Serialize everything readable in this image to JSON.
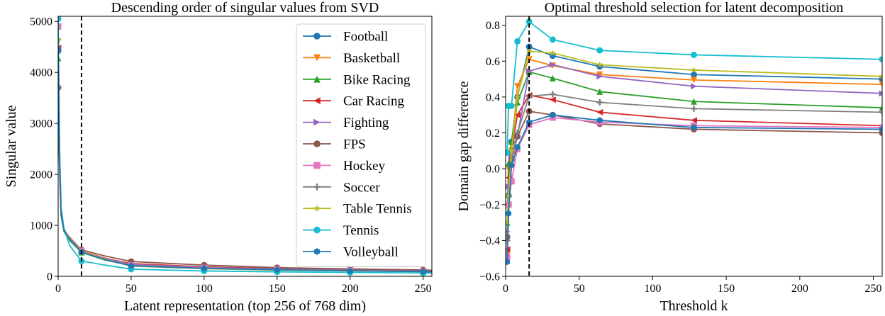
{
  "chart_data": [
    {
      "type": "line",
      "title": "Descending order of singular values from SVD",
      "xlabel": "Latent representation (top 256 of 768 dim)",
      "ylabel": "Singular value",
      "xlim": [
        0,
        256
      ],
      "ylim": [
        0,
        5100
      ],
      "xticks": [
        "0",
        "50",
        "100",
        "150",
        "200",
        "250"
      ],
      "yticks": [
        "0",
        "1000",
        "2000",
        "3000",
        "4000",
        "5000"
      ],
      "xtick_values": [
        0,
        50,
        100,
        150,
        200,
        250
      ],
      "ytick_values": [
        0,
        1000,
        2000,
        3000,
        4000,
        5000
      ],
      "vline_x": 16,
      "legend_position": "upper-right",
      "x": [
        0,
        1,
        2,
        4,
        8,
        16,
        32,
        50,
        100,
        150,
        200,
        250,
        256
      ],
      "series": [
        {
          "name": "Football",
          "color": "#1f77b4",
          "marker": "circle",
          "values": [
            4420,
            2200,
            1250,
            900,
            720,
            480,
            340,
            230,
            170,
            140,
            120,
            100,
            95
          ]
        },
        {
          "name": "Basketball",
          "color": "#ff7f0e",
          "marker": "triangle-down",
          "values": [
            4600,
            2300,
            1300,
            920,
            740,
            500,
            360,
            240,
            180,
            145,
            125,
            105,
            100
          ]
        },
        {
          "name": "Bike Racing",
          "color": "#2ca02c",
          "marker": "triangle-up",
          "values": [
            4280,
            2100,
            1200,
            880,
            700,
            470,
            320,
            210,
            160,
            130,
            110,
            95,
            90
          ]
        },
        {
          "name": "Car Racing",
          "color": "#d62728",
          "marker": "triangle-left",
          "values": [
            4480,
            2250,
            1280,
            910,
            730,
            490,
            350,
            250,
            185,
            150,
            128,
            108,
            102
          ]
        },
        {
          "name": "Fighting",
          "color": "#9467bd",
          "marker": "triangle-right",
          "values": [
            4480,
            2250,
            1280,
            910,
            730,
            490,
            350,
            235,
            175,
            142,
            122,
            103,
            98
          ]
        },
        {
          "name": "FPS",
          "color": "#8c564b",
          "marker": "circle",
          "values": [
            3700,
            2000,
            1200,
            900,
            760,
            520,
            400,
            290,
            220,
            170,
            145,
            125,
            120
          ]
        },
        {
          "name": "Hockey",
          "color": "#e377c2",
          "marker": "square",
          "values": [
            4900,
            2400,
            1320,
            930,
            740,
            500,
            340,
            220,
            165,
            135,
            115,
            98,
            93
          ]
        },
        {
          "name": "Soccer",
          "color": "#7f7f7f",
          "marker": "plus",
          "values": [
            4480,
            2200,
            1260,
            900,
            720,
            480,
            330,
            215,
            160,
            132,
            112,
            96,
            91
          ]
        },
        {
          "name": "Table Tennis",
          "color": "#bcbd22",
          "marker": "star",
          "values": [
            4650,
            2300,
            1300,
            920,
            730,
            485,
            335,
            200,
            150,
            122,
            104,
            90,
            86
          ]
        },
        {
          "name": "Tennis",
          "color": "#17becf",
          "marker": "circle",
          "values": [
            5050,
            2500,
            1350,
            940,
            600,
            300,
            220,
            140,
            105,
            88,
            76,
            66,
            63
          ]
        },
        {
          "name": "Volleyball",
          "color": "#1f77b4",
          "marker": "hexagon",
          "values": [
            4450,
            2200,
            1250,
            900,
            720,
            475,
            330,
            205,
            155,
            128,
            108,
            93,
            88
          ]
        }
      ]
    },
    {
      "type": "line",
      "title": "Optimal threshold selection for latent decomposition",
      "xlabel": "Threshold k",
      "ylabel": "Domain gap difference",
      "xlim": [
        0,
        256
      ],
      "ylim": [
        -0.6,
        0.85
      ],
      "xticks": [
        "0",
        "50",
        "100",
        "150",
        "200",
        "250"
      ],
      "yticks": [
        "−0.6",
        "−0.4",
        "−0.2",
        "0.0",
        "0.2",
        "0.4",
        "0.6",
        "0.8"
      ],
      "xtick_values": [
        0,
        50,
        100,
        150,
        200,
        250
      ],
      "ytick_values": [
        -0.6,
        -0.4,
        -0.2,
        0.0,
        0.2,
        0.4,
        0.6,
        0.8
      ],
      "vline_x": 16,
      "x": [
        1,
        2,
        4,
        8,
        16,
        32,
        64,
        128,
        256
      ],
      "series": [
        {
          "name": "Football",
          "color": "#1f77b4",
          "marker": "circle",
          "values": [
            -0.5,
            -0.15,
            0.15,
            0.4,
            0.68,
            0.63,
            0.57,
            0.525,
            0.5
          ]
        },
        {
          "name": "Basketball",
          "color": "#ff7f0e",
          "marker": "triangle-down",
          "values": [
            -0.48,
            0.0,
            0.1,
            0.46,
            0.61,
            0.575,
            0.525,
            0.495,
            0.47
          ]
        },
        {
          "name": "Bike Racing",
          "color": "#2ca02c",
          "marker": "triangle-up",
          "values": [
            -0.3,
            0.03,
            0.15,
            0.37,
            0.54,
            0.505,
            0.43,
            0.375,
            0.34
          ]
        },
        {
          "name": "Car Racing",
          "color": "#d62728",
          "marker": "triangle-left",
          "values": [
            -0.45,
            -0.05,
            0.1,
            0.3,
            0.41,
            0.385,
            0.315,
            0.27,
            0.24
          ]
        },
        {
          "name": "Fighting",
          "color": "#9467bd",
          "marker": "triangle-right",
          "values": [
            -0.35,
            -0.1,
            0.07,
            0.18,
            0.545,
            0.58,
            0.515,
            0.46,
            0.42
          ]
        },
        {
          "name": "FPS",
          "color": "#8c564b",
          "marker": "circle",
          "values": [
            -0.38,
            -0.2,
            0.05,
            0.18,
            0.32,
            0.3,
            0.25,
            0.22,
            0.2
          ]
        },
        {
          "name": "Hockey",
          "color": "#e377c2",
          "marker": "square",
          "values": [
            -0.49,
            -0.2,
            -0.07,
            0.11,
            0.245,
            0.285,
            0.26,
            0.24,
            0.23
          ]
        },
        {
          "name": "Soccer",
          "color": "#7f7f7f",
          "marker": "plus",
          "values": [
            -0.4,
            -0.15,
            0.05,
            0.2,
            0.405,
            0.415,
            0.37,
            0.335,
            0.315
          ]
        },
        {
          "name": "Table Tennis",
          "color": "#bcbd22",
          "marker": "star",
          "values": [
            -0.3,
            -0.15,
            0.1,
            0.4,
            0.655,
            0.645,
            0.58,
            0.55,
            0.515
          ]
        },
        {
          "name": "Tennis",
          "color": "#17becf",
          "marker": "circle",
          "values": [
            0.09,
            0.35,
            0.35,
            0.71,
            0.82,
            0.72,
            0.66,
            0.635,
            0.61
          ]
        },
        {
          "name": "Volleyball",
          "color": "#1f77b4",
          "marker": "hexagon",
          "values": [
            -0.52,
            -0.25,
            0.02,
            0.12,
            0.26,
            0.3,
            0.27,
            0.23,
            0.22
          ]
        }
      ]
    }
  ]
}
